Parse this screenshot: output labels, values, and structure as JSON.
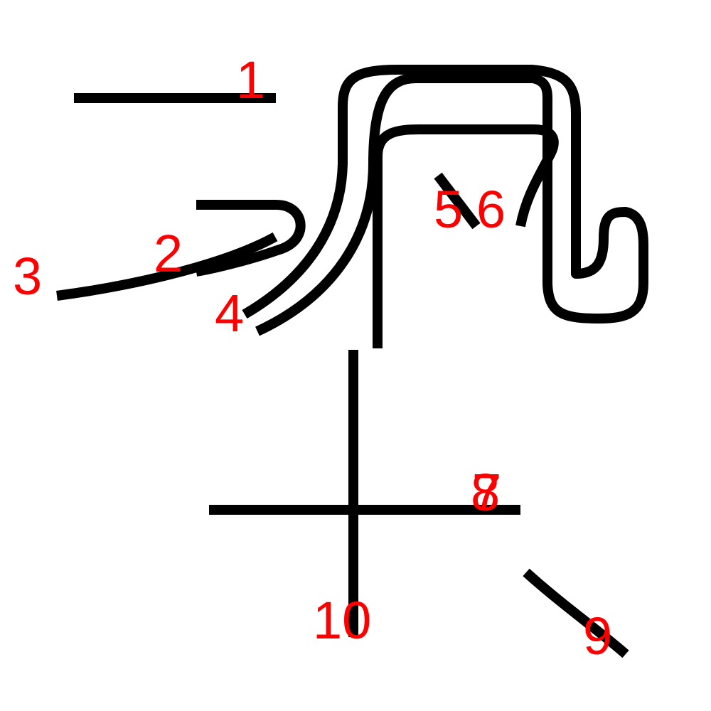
{
  "colors": {
    "stroke": "#000000",
    "label": "#ff0000",
    "background": "#ffffff"
  },
  "strokes": [
    {
      "id": "1",
      "label": "1"
    },
    {
      "id": "2",
      "label": "2"
    },
    {
      "id": "3",
      "label": "3"
    },
    {
      "id": "4",
      "label": "4"
    },
    {
      "id": "5",
      "label": "5"
    },
    {
      "id": "6",
      "label": "6"
    },
    {
      "id": "7",
      "label": "7"
    },
    {
      "id": "8",
      "label": "8"
    },
    {
      "id": "9",
      "label": "9"
    },
    {
      "id": "10",
      "label": "10"
    }
  ]
}
